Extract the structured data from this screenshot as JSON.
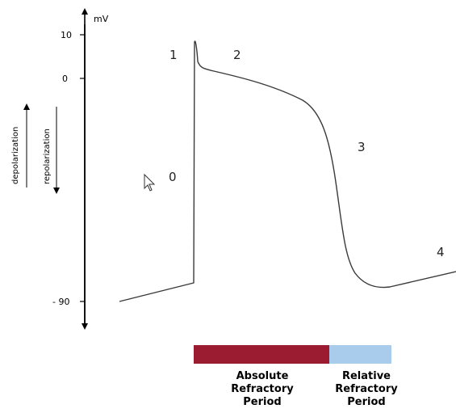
{
  "axis": {
    "unit": "mV",
    "ticks": [
      "10",
      "0",
      "- 90"
    ]
  },
  "direction_labels": {
    "depolarization": "depolarization",
    "repolarization": "repolarization"
  },
  "phases": [
    "0",
    "1",
    "2",
    "3",
    "4"
  ],
  "refractory_periods": {
    "absolute": {
      "lines": [
        "Absolute",
        "Refractory",
        "Period"
      ],
      "color": "#9b1b30"
    },
    "relative": {
      "lines": [
        "Relative",
        "Refractory",
        "Period"
      ],
      "color": "#a9cbec"
    }
  },
  "colors": {
    "trace": "#3a3a3a",
    "axis": "#000000"
  }
}
